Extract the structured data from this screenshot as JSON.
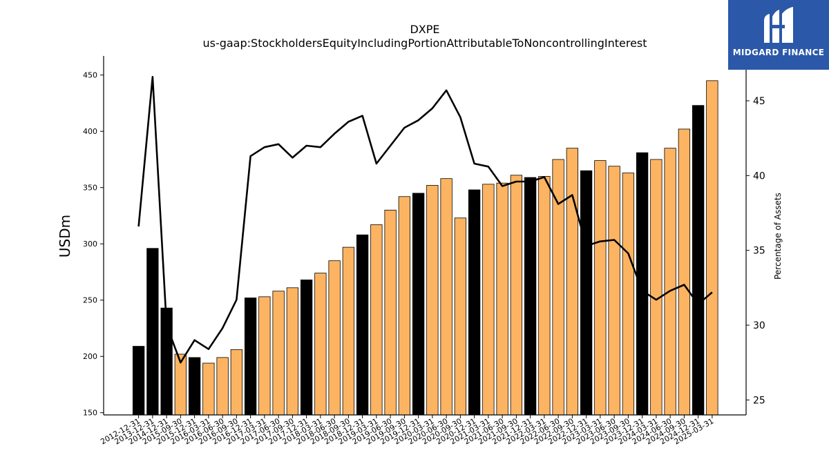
{
  "chart_data": {
    "type": "bar",
    "title": "DXPE",
    "subtitle": "us-gaap:StockholdersEquityIncludingPortionAttributableToNoncontrollingInterest",
    "ylabel": "USDm",
    "y2label": "Percentage of Assets",
    "ylim": [
      148,
      467
    ],
    "y2lim": [
      24,
      48
    ],
    "yticks": [
      150,
      200,
      250,
      300,
      350,
      400,
      450
    ],
    "y2ticks": [
      25,
      30,
      35,
      40,
      45
    ],
    "grid": false,
    "colors": {
      "annual": "#000000",
      "quarter": "#fdb462",
      "line": "#000000"
    },
    "categories": [
      "2012-12-31",
      "2013-12-31",
      "2014-12-31",
      "2015-09-30",
      "2015-12-31",
      "2016-03-31",
      "2016-06-30",
      "2016-09-30",
      "2016-12-31",
      "2017-03-31",
      "2017-06-30",
      "2017-09-30",
      "2017-12-31",
      "2018-03-31",
      "2018-06-30",
      "2018-09-30",
      "2018-12-31",
      "2019-03-31",
      "2019-06-30",
      "2019-09-30",
      "2019-12-31",
      "2020-03-31",
      "2020-06-30",
      "2020-09-30",
      "2020-12-31",
      "2021-03-31",
      "2021-06-30",
      "2021-09-30",
      "2021-12-31",
      "2022-03-31",
      "2022-06-30",
      "2022-09-30",
      "2022-12-31",
      "2023-03-31",
      "2023-06-30",
      "2023-09-30",
      "2023-12-31",
      "2024-03-31",
      "2024-06-30",
      "2024-09-30",
      "2024-12-31",
      "2025-03-31"
    ],
    "series": [
      {
        "kind": "bar",
        "values": [
          209,
          296,
          243,
          202,
          199,
          194,
          199,
          206,
          252,
          253,
          258,
          261,
          268,
          274,
          285,
          297,
          308,
          317,
          330,
          342,
          345,
          352,
          358,
          323,
          348,
          353,
          354,
          361,
          359,
          360,
          375,
          385,
          365,
          374,
          369,
          363,
          381,
          375,
          385,
          402,
          423,
          445
        ],
        "annual": [
          true,
          true,
          true,
          false,
          true,
          false,
          false,
          false,
          true,
          false,
          false,
          false,
          true,
          false,
          false,
          false,
          true,
          false,
          false,
          false,
          true,
          false,
          false,
          false,
          true,
          false,
          false,
          false,
          true,
          false,
          false,
          false,
          true,
          false,
          false,
          false,
          true,
          false,
          false,
          false,
          true,
          false
        ]
      },
      {
        "kind": "line",
        "axis": "right",
        "values": [
          36.6,
          46.6,
          30.0,
          27.5,
          29.0,
          28.4,
          29.8,
          31.7,
          41.3,
          41.9,
          42.1,
          41.2,
          42.0,
          41.9,
          42.8,
          43.6,
          44.0,
          40.8,
          42.0,
          43.2,
          43.7,
          44.5,
          45.7,
          43.9,
          40.8,
          40.6,
          39.3,
          39.6,
          39.6,
          39.9,
          38.1,
          38.7,
          35.3,
          35.6,
          35.7,
          34.8,
          32.3,
          31.7,
          32.3,
          32.7,
          31.4,
          32.2
        ]
      }
    ]
  },
  "logo": {
    "name": "midgard-logo-icon",
    "text": "MIDGARD FINANCE"
  }
}
